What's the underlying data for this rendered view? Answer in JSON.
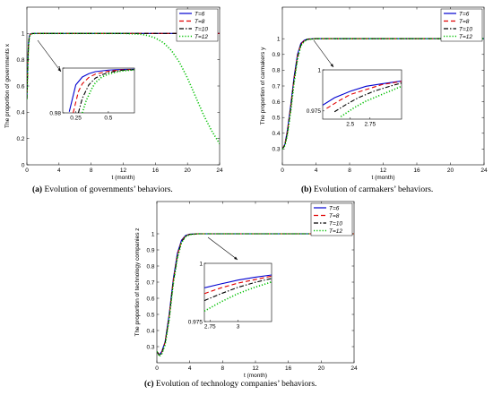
{
  "captions": {
    "a_tag": "(a)",
    "a_text": "Evolution of governments’ behaviors.",
    "b_tag": "(b)",
    "b_text": "Evolution of carmakers’ behaviors.",
    "c_tag": "(c)",
    "c_text": "Evolution of technology companies’ behaviors."
  },
  "colors": {
    "T=6": "#0000d0",
    "T=8": "#e00000",
    "T=10": "#000000",
    "T=12": "#00c000"
  },
  "chart_data": [
    {
      "id": "a",
      "type": "line",
      "xlabel": "t (month)",
      "ylabel": "The proportion of governments x",
      "xlim": [
        0,
        24
      ],
      "ylim": [
        0,
        1.2
      ],
      "xticks": [
        0,
        4,
        8,
        12,
        16,
        20,
        24
      ],
      "yticks": [
        0,
        0.2,
        0.4,
        0.6,
        0.8,
        1
      ],
      "legend_position": "top-right",
      "series": [
        {
          "name": "T=6",
          "style": "solid",
          "x": [
            0,
            0.1,
            0.2,
            0.3,
            0.4,
            0.6,
            1,
            2,
            24
          ],
          "y": [
            0.5,
            0.78,
            0.93,
            0.98,
            0.995,
            1,
            1,
            1,
            1
          ]
        },
        {
          "name": "T=8",
          "style": "dashed",
          "x": [
            0,
            0.1,
            0.2,
            0.3,
            0.4,
            0.6,
            1,
            2,
            24
          ],
          "y": [
            0.5,
            0.76,
            0.92,
            0.975,
            0.992,
            0.999,
            1,
            1,
            1
          ]
        },
        {
          "name": "T=10",
          "style": "dashdot",
          "x": [
            0,
            0.1,
            0.2,
            0.3,
            0.4,
            0.6,
            1,
            2,
            24
          ],
          "y": [
            0.5,
            0.74,
            0.91,
            0.97,
            0.99,
            0.998,
            1,
            1,
            1
          ]
        },
        {
          "name": "T=12",
          "style": "dotted",
          "x": [
            0,
            0.1,
            0.2,
            0.3,
            0.4,
            0.6,
            1,
            2,
            12,
            14,
            15,
            16,
            17,
            18,
            19,
            20,
            21,
            22,
            23,
            24
          ],
          "y": [
            0.5,
            0.72,
            0.9,
            0.965,
            0.988,
            0.997,
            1,
            1,
            1,
            0.995,
            0.985,
            0.965,
            0.93,
            0.87,
            0.78,
            0.66,
            0.52,
            0.38,
            0.26,
            0.16
          ]
        }
      ],
      "inset": {
        "xlim": [
          0.15,
          0.7
        ],
        "ylim": [
          0.98,
          1
        ],
        "xticks": [
          0.25,
          0.5
        ],
        "yticks": [
          0.98,
          1
        ],
        "series": [
          {
            "name": "T=6",
            "x": [
              0.2,
              0.25,
              0.3,
              0.35,
              0.4,
              0.5,
              0.6,
              0.7
            ],
            "y": [
              0.9805,
              0.9925,
              0.996,
              0.9975,
              0.9984,
              0.9991,
              0.9994,
              0.9995
            ]
          },
          {
            "name": "T=8",
            "x": [
              0.23,
              0.27,
              0.3,
              0.35,
              0.4,
              0.5,
              0.6,
              0.7
            ],
            "y": [
              0.98,
              0.9895,
              0.993,
              0.9958,
              0.9973,
              0.9986,
              0.9992,
              0.9994
            ]
          },
          {
            "name": "T=10",
            "x": [
              0.27,
              0.3,
              0.35,
              0.4,
              0.45,
              0.5,
              0.6,
              0.7
            ],
            "y": [
              0.98,
              0.9865,
              0.9925,
              0.9955,
              0.997,
              0.998,
              0.999,
              0.9993
            ]
          },
          {
            "name": "T=12",
            "x": [
              0.3,
              0.33,
              0.37,
              0.4,
              0.45,
              0.5,
              0.6,
              0.7
            ],
            "y": [
              0.98,
              0.9855,
              0.9905,
              0.9935,
              0.996,
              0.9973,
              0.9987,
              0.9992
            ]
          }
        ]
      }
    },
    {
      "id": "b",
      "type": "line",
      "xlabel": "t (month)",
      "ylabel": "The proportion of carmakers y",
      "xlim": [
        0,
        24
      ],
      "ylim": [
        0.2,
        1.2
      ],
      "xticks": [
        0,
        4,
        8,
        12,
        16,
        20,
        24
      ],
      "yticks": [
        0.3,
        0.4,
        0.5,
        0.6,
        0.7,
        0.8,
        0.9,
        1
      ],
      "legend_position": "top-right",
      "series": [
        {
          "name": "T=6",
          "style": "solid",
          "x": [
            0,
            0.3,
            0.6,
            1,
            1.4,
            1.8,
            2.2,
            2.6,
            3,
            4,
            24
          ],
          "y": [
            0.3,
            0.33,
            0.42,
            0.58,
            0.76,
            0.9,
            0.97,
            0.99,
            0.998,
            1,
            1
          ]
        },
        {
          "name": "T=8",
          "style": "dashed",
          "x": [
            0,
            0.3,
            0.6,
            1,
            1.4,
            1.8,
            2.2,
            2.6,
            3,
            4,
            24
          ],
          "y": [
            0.3,
            0.33,
            0.41,
            0.57,
            0.75,
            0.89,
            0.965,
            0.988,
            0.997,
            1,
            1
          ]
        },
        {
          "name": "T=10",
          "style": "dashdot",
          "x": [
            0,
            0.3,
            0.6,
            1,
            1.4,
            1.8,
            2.2,
            2.6,
            3,
            4,
            24
          ],
          "y": [
            0.3,
            0.325,
            0.4,
            0.56,
            0.74,
            0.88,
            0.96,
            0.985,
            0.996,
            1,
            1
          ]
        },
        {
          "name": "T=12",
          "style": "dotted",
          "x": [
            0,
            0.3,
            0.6,
            1,
            1.4,
            1.8,
            2.2,
            2.6,
            3,
            4,
            24
          ],
          "y": [
            0.3,
            0.32,
            0.39,
            0.54,
            0.72,
            0.87,
            0.955,
            0.982,
            0.995,
            1,
            1
          ]
        }
      ],
      "inset": {
        "xlim": [
          2.15,
          3.15
        ],
        "ylim": [
          0.97,
          1
        ],
        "xticks": [
          2.5,
          2.75
        ],
        "yticks": [
          0.975,
          1
        ],
        "series": [
          {
            "name": "T=6",
            "x": [
              2.15,
              2.3,
              2.5,
              2.7,
              2.9,
              3.15
            ],
            "y": [
              0.9785,
              0.983,
              0.987,
              0.99,
              0.9915,
              0.9932
            ]
          },
          {
            "name": "T=8",
            "x": [
              2.2,
              2.35,
              2.5,
              2.7,
              2.9,
              3.15
            ],
            "y": [
              0.9765,
              0.981,
              0.985,
              0.988,
              0.991,
              0.993
            ]
          },
          {
            "name": "T=10",
            "x": [
              2.3,
              2.45,
              2.6,
              2.8,
              3.0,
              3.15
            ],
            "y": [
              0.9745,
              0.979,
              0.983,
              0.987,
              0.99,
              0.992
            ]
          },
          {
            "name": "T=12",
            "x": [
              2.38,
              2.55,
              2.7,
              2.9,
              3.05,
              3.15
            ],
            "y": [
              0.9715,
              0.977,
              0.981,
              0.985,
              0.988,
              0.99
            ]
          }
        ]
      }
    },
    {
      "id": "c",
      "type": "line",
      "xlabel": "t (month)",
      "ylabel": "The proportion of technology companies z",
      "xlim": [
        0,
        24
      ],
      "ylim": [
        0.2,
        1.2
      ],
      "xticks": [
        0,
        4,
        8,
        12,
        16,
        20,
        24
      ],
      "yticks": [
        0.3,
        0.4,
        0.5,
        0.6,
        0.7,
        0.8,
        0.9,
        1
      ],
      "legend_position": "top-right",
      "series": [
        {
          "name": "T=6",
          "style": "solid",
          "x": [
            0,
            0.3,
            0.6,
            1,
            1.5,
            2,
            2.5,
            3,
            3.5,
            4,
            5,
            24
          ],
          "y": [
            0.27,
            0.25,
            0.27,
            0.33,
            0.5,
            0.72,
            0.88,
            0.96,
            0.99,
            0.998,
            1,
            1
          ]
        },
        {
          "name": "T=8",
          "style": "dashed",
          "x": [
            0,
            0.3,
            0.6,
            1,
            1.5,
            2,
            2.5,
            3,
            3.5,
            4,
            5,
            24
          ],
          "y": [
            0.27,
            0.25,
            0.265,
            0.325,
            0.49,
            0.71,
            0.87,
            0.955,
            0.988,
            0.997,
            1,
            1
          ]
        },
        {
          "name": "T=10",
          "style": "dashdot",
          "x": [
            0,
            0.3,
            0.6,
            1,
            1.5,
            2,
            2.5,
            3,
            3.5,
            4,
            5,
            24
          ],
          "y": [
            0.27,
            0.245,
            0.26,
            0.32,
            0.48,
            0.7,
            0.86,
            0.95,
            0.985,
            0.996,
            1,
            1
          ]
        },
        {
          "name": "T=12",
          "style": "dotted",
          "x": [
            0,
            0.3,
            0.6,
            1,
            1.5,
            2,
            2.5,
            3,
            3.5,
            4,
            5,
            24
          ],
          "y": [
            0.27,
            0.24,
            0.255,
            0.31,
            0.47,
            0.69,
            0.85,
            0.945,
            0.982,
            0.995,
            1,
            1
          ]
        }
      ],
      "inset": {
        "xlim": [
          2.7,
          3.3
        ],
        "ylim": [
          0.975,
          1
        ],
        "xticks": [
          2.75,
          3
        ],
        "yticks": [
          0.975,
          1
        ],
        "series": [
          {
            "name": "T=6",
            "x": [
              2.7,
              2.85,
              3.0,
              3.15,
              3.3
            ],
            "y": [
              0.9895,
              0.9912,
              0.9928,
              0.994,
              0.995
            ]
          },
          {
            "name": "T=8",
            "x": [
              2.7,
              2.85,
              3.0,
              3.15,
              3.3
            ],
            "y": [
              0.987,
              0.9895,
              0.9915,
              0.993,
              0.9945
            ]
          },
          {
            "name": "T=10",
            "x": [
              2.7,
              2.85,
              3.0,
              3.15,
              3.3
            ],
            "y": [
              0.984,
              0.987,
              0.9897,
              0.9918,
              0.9935
            ]
          },
          {
            "name": "T=12",
            "x": [
              2.7,
              2.85,
              3.0,
              3.15,
              3.3
            ],
            "y": [
              0.9795,
              0.9835,
              0.987,
              0.9897,
              0.992
            ]
          }
        ]
      }
    }
  ]
}
